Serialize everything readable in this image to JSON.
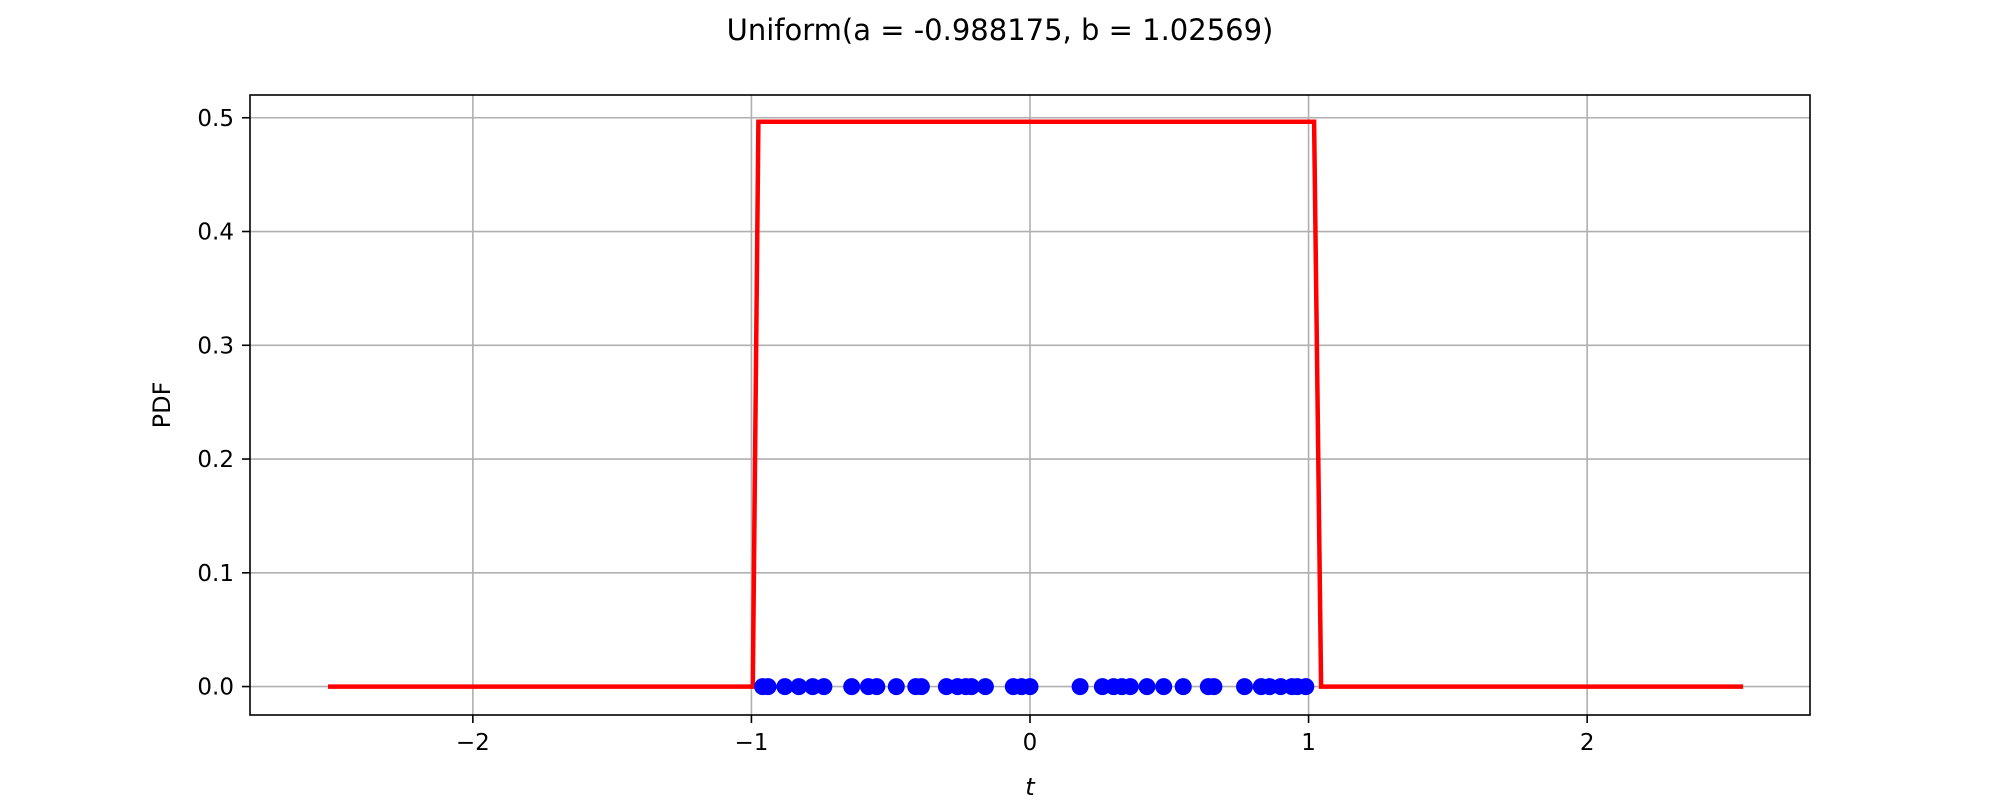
{
  "chart_data": {
    "type": "line",
    "title": "Uniform(a = -0.988175, b = 1.02569)",
    "xlabel": "t",
    "ylabel": "PDF",
    "xlim": [
      -2.8,
      2.8
    ],
    "ylim": [
      -0.025,
      0.52
    ],
    "grid": true,
    "x_ticks": [
      {
        "value": -2,
        "label": "−2"
      },
      {
        "value": -1,
        "label": "−1"
      },
      {
        "value": 0,
        "label": "0"
      },
      {
        "value": 1,
        "label": "1"
      },
      {
        "value": 2,
        "label": "2"
      }
    ],
    "y_ticks": [
      {
        "value": 0.0,
        "label": "0.0"
      },
      {
        "value": 0.1,
        "label": "0.1"
      },
      {
        "value": 0.2,
        "label": "0.2"
      },
      {
        "value": 0.3,
        "label": "0.3"
      },
      {
        "value": 0.4,
        "label": "0.4"
      },
      {
        "value": 0.5,
        "label": "0.5"
      }
    ],
    "series": [
      {
        "kind": "line",
        "color": "#ff0000",
        "x": [
          -2.52,
          -0.995,
          -0.975,
          1.02,
          1.045,
          2.56
        ],
        "y": [
          0.0,
          0.0,
          0.4965,
          0.4965,
          0.0,
          0.0
        ]
      },
      {
        "kind": "scatter",
        "color": "#0000ff",
        "x": [
          -0.96,
          -0.94,
          -0.88,
          -0.83,
          -0.78,
          -0.74,
          -0.64,
          -0.58,
          -0.55,
          -0.48,
          -0.41,
          -0.39,
          -0.3,
          -0.26,
          -0.23,
          -0.21,
          -0.16,
          -0.06,
          -0.03,
          0.0,
          0.18,
          0.26,
          0.3,
          0.33,
          0.36,
          0.42,
          0.48,
          0.55,
          0.64,
          0.66,
          0.77,
          0.83,
          0.86,
          0.9,
          0.94,
          0.96,
          0.99
        ],
        "y": [
          0,
          0,
          0,
          0,
          0,
          0,
          0,
          0,
          0,
          0,
          0,
          0,
          0,
          0,
          0,
          0,
          0,
          0,
          0,
          0,
          0,
          0,
          0,
          0,
          0,
          0,
          0,
          0,
          0,
          0,
          0,
          0,
          0,
          0,
          0,
          0,
          0
        ]
      }
    ]
  }
}
